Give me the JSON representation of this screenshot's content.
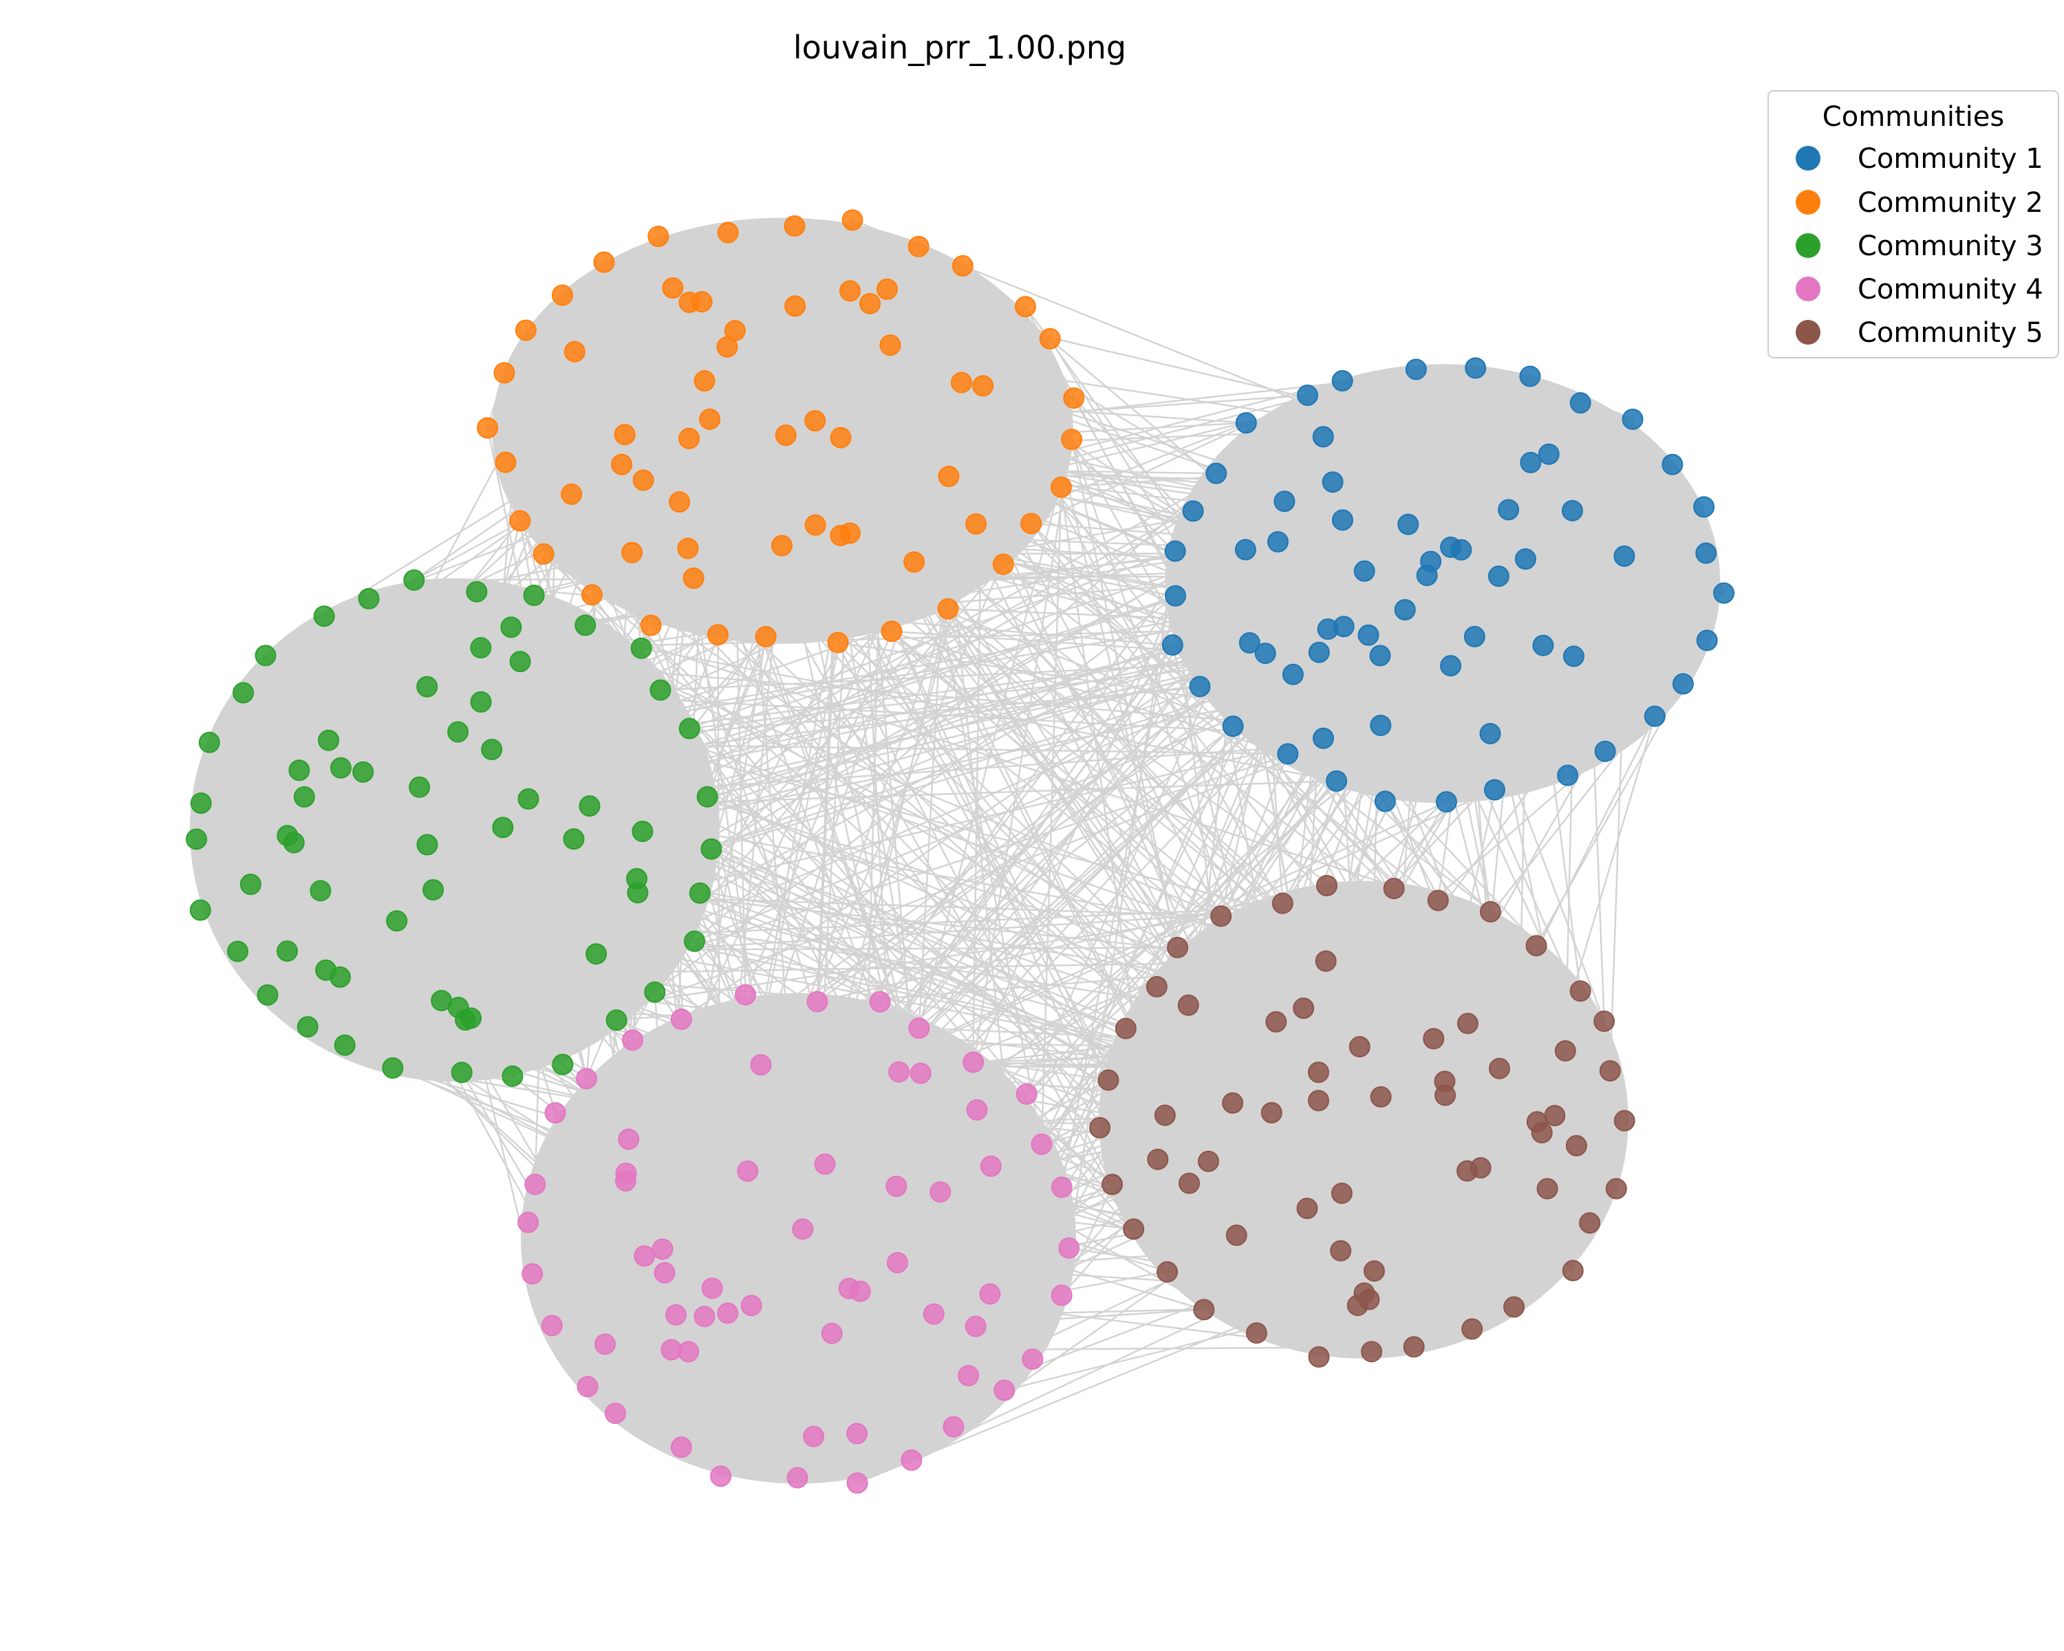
{
  "title": "louvain_prr_1.00.png",
  "legend": {
    "title": "Communities",
    "items": [
      {
        "label": "Community 1",
        "color": "#1f77b4"
      },
      {
        "label": "Community 2",
        "color": "#ff7f0e"
      },
      {
        "label": "Community 3",
        "color": "#2ca02c"
      },
      {
        "label": "Community 4",
        "color": "#e377c2"
      },
      {
        "label": "Community 5",
        "color": "#8c564b"
      }
    ]
  },
  "edge_color": "#d3d3d3"
}
